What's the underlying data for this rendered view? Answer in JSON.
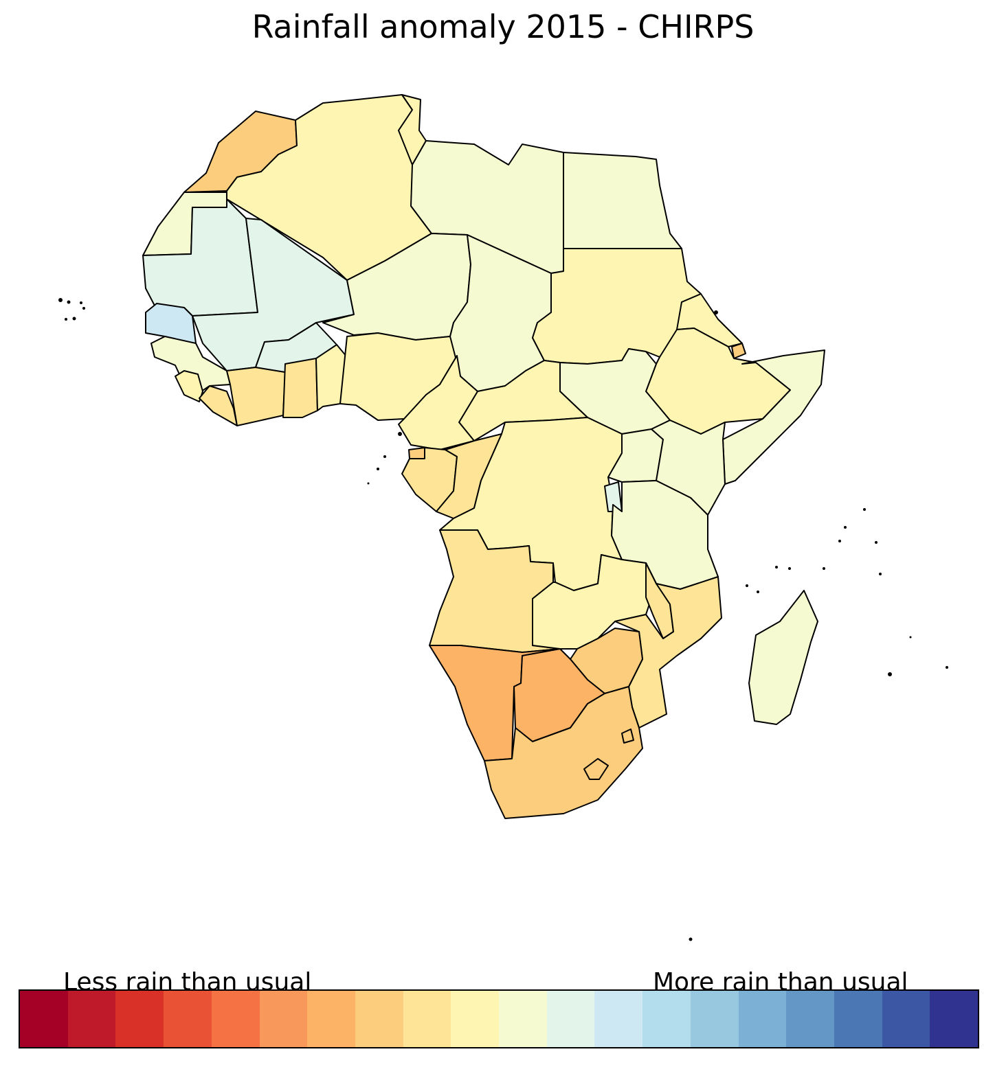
{
  "map": {
    "title": "Rainfall anomaly 2015 - CHIRPS",
    "legend": {
      "low_label": "Less rain than usual",
      "high_label": "More rain than usual",
      "colors": [
        "#a50026",
        "#be1a29",
        "#d93028",
        "#ea5236",
        "#f47244",
        "#f8985a",
        "#fdb366",
        "#fdcd7e",
        "#fde496",
        "#fef5b3",
        "#f5fad0",
        "#e3f4ea",
        "#cde8f2",
        "#b3dcec",
        "#98c7e0",
        "#7cb1d5",
        "#6597c6",
        "#4b78b4",
        "#3c57a3",
        "#303390"
      ]
    },
    "classes": {
      "c7": "#fdb366",
      "c8": "#fdcd7e",
      "c9": "#fde496",
      "c10": "#fef5b3",
      "c11": "#f5fad0",
      "c12": "#e3f4ea",
      "c13": "#cde8f2"
    }
  }
}
